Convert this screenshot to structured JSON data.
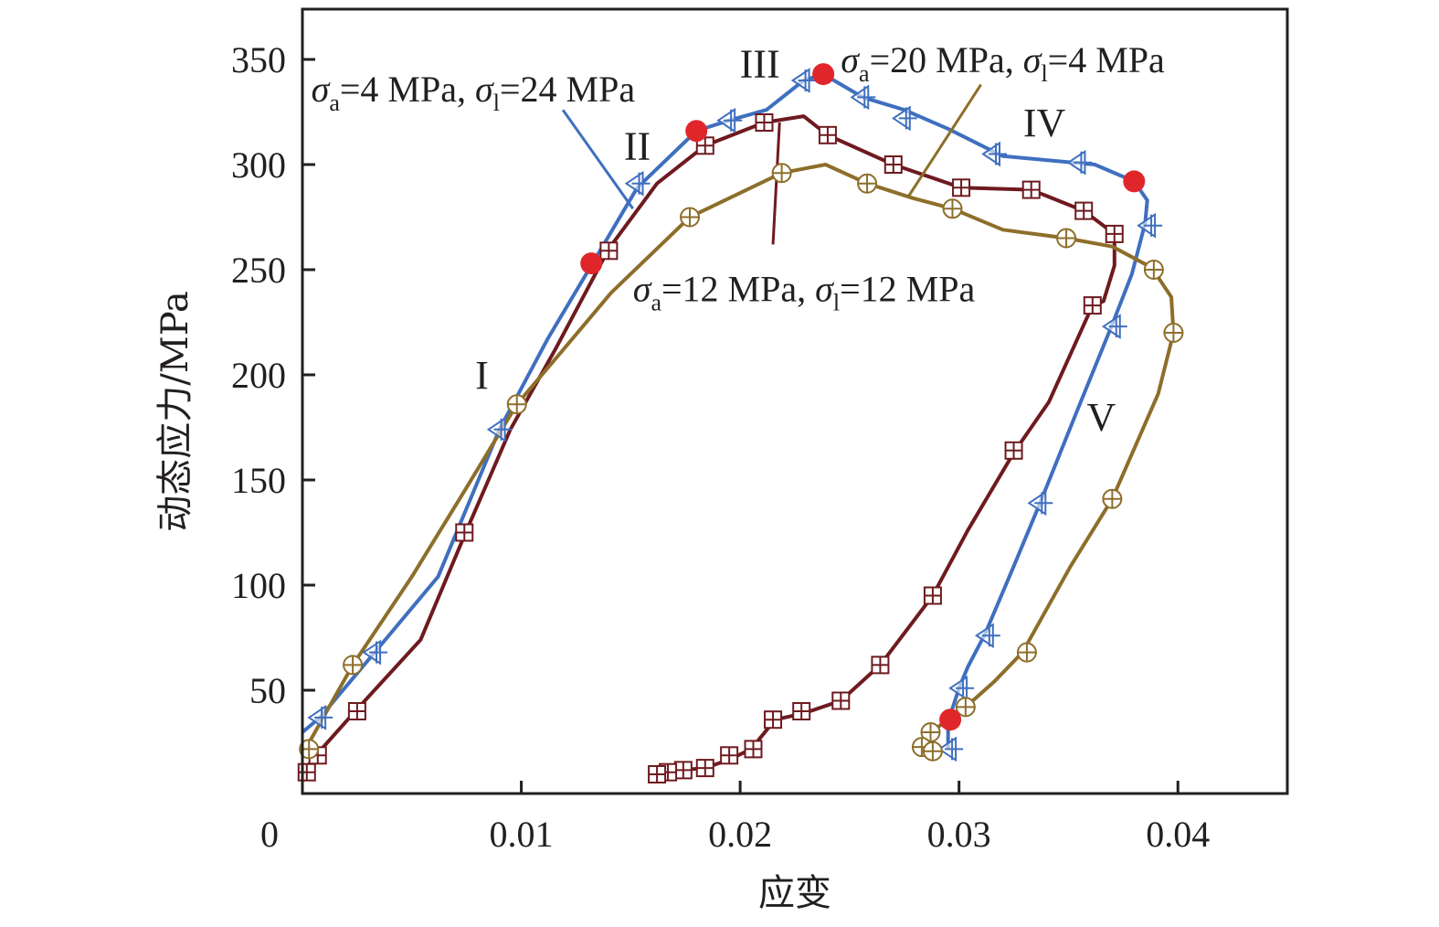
{
  "chart_data": {
    "type": "line",
    "title": "",
    "xlabel": "应变",
    "ylabel": "动态应力/MPa",
    "xlim": [
      0,
      0.045
    ],
    "ylim": [
      0,
      374
    ],
    "xticks": [
      0,
      0.01,
      0.02,
      0.03,
      0.04
    ],
    "xtick_labels": [
      "0",
      "0.01",
      "0.02",
      "0.03",
      "0.04"
    ],
    "yticks": [
      50,
      100,
      150,
      200,
      250,
      300,
      350
    ],
    "ytick_labels": [
      "50",
      "100",
      "150",
      "200",
      "250",
      "300",
      "350"
    ],
    "grid": false,
    "series": [
      {
        "name": "σa=4 MPa, σl=24 MPa",
        "sigma_a": "4",
        "sigma_l": "24",
        "color": "#3f6fbf",
        "marker": "triangle-left-cross",
        "points": [
          [
            0,
            30
          ],
          [
            0.0008,
            37
          ],
          [
            0.0033,
            68
          ],
          [
            0.0062,
            104
          ],
          [
            0.009,
            174
          ],
          [
            0.0112,
            217
          ],
          [
            0.0132,
            252
          ],
          [
            0.0153,
            289
          ],
          [
            0.018,
            316
          ],
          [
            0.0195,
            321
          ],
          [
            0.0212,
            326
          ],
          [
            0.0229,
            340
          ],
          [
            0.0238,
            343
          ],
          [
            0.0256,
            332
          ],
          [
            0.0275,
            326
          ],
          [
            0.0295,
            317
          ],
          [
            0.032,
            304
          ],
          [
            0.0341,
            302
          ],
          [
            0.0362,
            300
          ],
          [
            0.038,
            292
          ],
          [
            0.0386,
            283
          ],
          [
            0.0385,
            272
          ],
          [
            0.0379,
            248
          ],
          [
            0.037,
            224
          ],
          [
            0.0354,
            183
          ],
          [
            0.0337,
            139
          ],
          [
            0.0325,
            109
          ],
          [
            0.0312,
            77
          ],
          [
            0.0304,
            61
          ],
          [
            0.03,
            51
          ],
          [
            0.0295,
            35
          ],
          [
            0.0295,
            22
          ]
        ],
        "marker_points": [
          [
            0.0008,
            37
          ],
          [
            0.0033,
            68
          ],
          [
            0.009,
            174
          ],
          [
            0.0153,
            291
          ],
          [
            0.0195,
            321
          ],
          [
            0.0229,
            340
          ],
          [
            0.0256,
            332
          ],
          [
            0.0275,
            322
          ],
          [
            0.0316,
            305
          ],
          [
            0.0355,
            301
          ],
          [
            0.0387,
            271
          ],
          [
            0.0371,
            223
          ],
          [
            0.0337,
            139
          ],
          [
            0.0313,
            76
          ],
          [
            0.0301,
            51
          ],
          [
            0.0296,
            22
          ]
        ]
      },
      {
        "name": "σa=12 MPa, σl=12 MPa",
        "sigma_a": "12",
        "sigma_l": "12",
        "color": "#6e1a1f",
        "marker": "square-cross",
        "points": [
          [
            0,
            11
          ],
          [
            0.0007,
            20
          ],
          [
            0.0025,
            41
          ],
          [
            0.0054,
            74
          ],
          [
            0.0075,
            126
          ],
          [
            0.0095,
            174
          ],
          [
            0.0116,
            213
          ],
          [
            0.014,
            260
          ],
          [
            0.0162,
            291
          ],
          [
            0.0184,
            309
          ],
          [
            0.0211,
            320
          ],
          [
            0.0229,
            323
          ],
          [
            0.024,
            314
          ],
          [
            0.027,
            300
          ],
          [
            0.0301,
            289
          ],
          [
            0.0333,
            288
          ],
          [
            0.0357,
            278
          ],
          [
            0.0371,
            267
          ],
          [
            0.0371,
            252
          ],
          [
            0.0366,
            235
          ],
          [
            0.0361,
            233
          ],
          [
            0.0341,
            187
          ],
          [
            0.0325,
            163
          ],
          [
            0.0304,
            126
          ],
          [
            0.0288,
            95
          ],
          [
            0.0264,
            62
          ],
          [
            0.0246,
            45
          ],
          [
            0.0229,
            39
          ],
          [
            0.0216,
            36
          ],
          [
            0.0205,
            22
          ],
          [
            0.0195,
            17
          ],
          [
            0.0184,
            13
          ],
          [
            0.0173,
            12
          ],
          [
            0.0162,
            10
          ]
        ],
        "marker_points": [
          [
            0.0002,
            11
          ],
          [
            0.0007,
            19
          ],
          [
            0.0025,
            40
          ],
          [
            0.0074,
            125
          ],
          [
            0.014,
            259
          ],
          [
            0.0184,
            309
          ],
          [
            0.0211,
            320
          ],
          [
            0.024,
            314
          ],
          [
            0.027,
            300
          ],
          [
            0.0301,
            289
          ],
          [
            0.0333,
            288
          ],
          [
            0.0357,
            278
          ],
          [
            0.0371,
            267
          ],
          [
            0.0361,
            233
          ],
          [
            0.0325,
            164
          ],
          [
            0.0288,
            95
          ],
          [
            0.0264,
            62
          ],
          [
            0.0246,
            45
          ],
          [
            0.0228,
            40
          ],
          [
            0.0215,
            36
          ],
          [
            0.0206,
            22
          ],
          [
            0.0195,
            19
          ],
          [
            0.0184,
            13
          ],
          [
            0.0174,
            12
          ],
          [
            0.0167,
            11
          ],
          [
            0.0162,
            10
          ]
        ]
      },
      {
        "name": "σa=20 MPa, σl=4 MPa",
        "sigma_a": "20",
        "sigma_l": "4",
        "color": "#8d6e2a",
        "marker": "circle-cross",
        "points": [
          [
            0,
            22
          ],
          [
            0.0003,
            25
          ],
          [
            0.0023,
            62
          ],
          [
            0.005,
            104
          ],
          [
            0.0073,
            143
          ],
          [
            0.0098,
            186
          ],
          [
            0.012,
            213
          ],
          [
            0.0141,
            239
          ],
          [
            0.0177,
            275
          ],
          [
            0.0195,
            284
          ],
          [
            0.0219,
            296
          ],
          [
            0.0239,
            300
          ],
          [
            0.0258,
            291
          ],
          [
            0.0279,
            284
          ],
          [
            0.0297,
            279
          ],
          [
            0.032,
            269
          ],
          [
            0.0349,
            265
          ],
          [
            0.037,
            261
          ],
          [
            0.0388,
            251
          ],
          [
            0.0397,
            237
          ],
          [
            0.0398,
            220
          ],
          [
            0.0391,
            191
          ],
          [
            0.037,
            141
          ],
          [
            0.0351,
            109
          ],
          [
            0.0329,
            68
          ],
          [
            0.0316,
            54
          ],
          [
            0.0303,
            42
          ],
          [
            0.0295,
            36
          ],
          [
            0.0287,
            30
          ],
          [
            0.0282,
            23
          ],
          [
            0.0288,
            21
          ]
        ],
        "marker_points": [
          [
            0.0003,
            22
          ],
          [
            0.0023,
            62
          ],
          [
            0.0098,
            186
          ],
          [
            0.0177,
            275
          ],
          [
            0.0219,
            296
          ],
          [
            0.0258,
            291
          ],
          [
            0.0297,
            279
          ],
          [
            0.0349,
            265
          ],
          [
            0.0389,
            250
          ],
          [
            0.0398,
            220
          ],
          [
            0.037,
            141
          ],
          [
            0.0331,
            68
          ],
          [
            0.0303,
            42
          ],
          [
            0.0287,
            30
          ],
          [
            0.0283,
            23
          ],
          [
            0.0288,
            21
          ]
        ]
      }
    ],
    "transition_points": {
      "color": "#e0262b",
      "points": [
        [
          0.0132,
          253
        ],
        [
          0.018,
          316
        ],
        [
          0.0238,
          343
        ],
        [
          0.038,
          292
        ],
        [
          0.0296,
          36
        ]
      ]
    },
    "annotations": [
      {
        "id": "stage-I",
        "text": "I",
        "x": 0.0082,
        "y": 200
      },
      {
        "id": "stage-II",
        "text": "II",
        "x": 0.0153,
        "y": 309
      },
      {
        "id": "stage-III",
        "text": "III",
        "x": 0.0209,
        "y": 348
      },
      {
        "id": "stage-IV",
        "text": "IV",
        "x": 0.0339,
        "y": 320
      },
      {
        "id": "stage-V",
        "text": "V",
        "x": 0.0365,
        "y": 180
      }
    ],
    "series_labels": [
      {
        "series": 0,
        "sigma_a": "4",
        "sigma_l": "24",
        "x": 0.0004,
        "y": 336,
        "leader_from": [
          0.0119,
          326
        ],
        "leader_to": [
          0.0151,
          279
        ]
      },
      {
        "series": 2,
        "sigma_a": "20",
        "sigma_l": "4",
        "x": 0.0246,
        "y": 350,
        "leader_from": [
          0.031,
          338
        ],
        "leader_to": [
          0.0277,
          285
        ]
      },
      {
        "series": 1,
        "sigma_a": "12",
        "sigma_l": "12",
        "x": 0.0151,
        "y": 241,
        "leader_from": [
          0.0218,
          320
        ],
        "leader_to": [
          0.0215,
          262
        ]
      }
    ],
    "label_parts": {
      "sigma": "σ",
      "sub_a": "a",
      "sub_l": "l",
      "eq": "=",
      "unit": " MPa",
      "sep": ", "
    }
  }
}
